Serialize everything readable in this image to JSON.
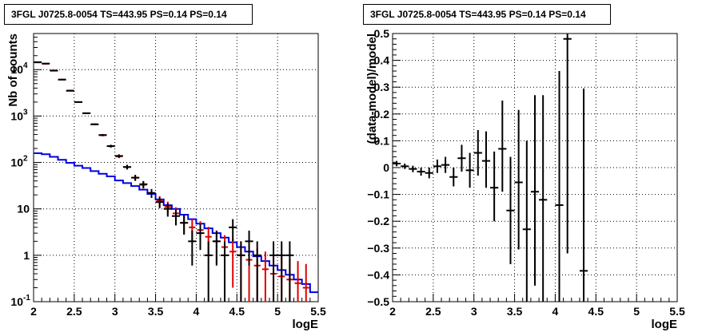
{
  "panels": [
    {
      "title": "3FGL J0725.8-0054 TS=443.95 PS=0.14 PS=0.14"
    },
    {
      "title": "3FGL J0725.8-0054 TS=443.95 PS=0.14 PS=0.14"
    }
  ],
  "colors": {
    "data": "#000000",
    "model_points": "#dd0000",
    "model_line": "#0000dd",
    "grid": "#000000"
  },
  "chart_data": [
    {
      "type": "line",
      "title": "3FGL J0725.8-0054 TS=443.95 PS=0.14 PS=0.14",
      "xlabel": "logE",
      "ylabel": "Nb of counts",
      "xlim": [
        2,
        5.5
      ],
      "ylim": [
        0.1,
        60000
      ],
      "yscale": "log",
      "grid": true,
      "x_ticks": [
        "2",
        "2.5",
        "3",
        "3.5",
        "4",
        "4.5",
        "5",
        "5.5"
      ],
      "y_ticks": [
        {
          "value": 0.1,
          "label": "10",
          "exp": "-1"
        },
        {
          "value": 1,
          "label": "1",
          "exp": ""
        },
        {
          "value": 10,
          "label": "10",
          "exp": ""
        },
        {
          "value": 100,
          "label": "10",
          "exp": "2"
        },
        {
          "value": 1000,
          "label": "10",
          "exp": "3"
        },
        {
          "value": 10000,
          "label": "10",
          "exp": "4"
        }
      ],
      "bin_width": 0.1,
      "series": [
        {
          "role": "data",
          "x": [
            2.05,
            2.15,
            2.25,
            2.35,
            2.45,
            2.55,
            2.65,
            2.75,
            2.85,
            2.95,
            3.05,
            3.15,
            3.25,
            3.35,
            3.45,
            3.55,
            3.65,
            3.75,
            3.85,
            3.95,
            4.05,
            4.15,
            4.25,
            4.35,
            4.45,
            4.55,
            4.65,
            4.75,
            4.85,
            4.95,
            5.05,
            5.15,
            5.25,
            5.35,
            5.45
          ],
          "y": [
            14500,
            13500,
            9500,
            6100,
            3500,
            2000,
            1150,
            660,
            390,
            225,
            138,
            80,
            47,
            34,
            22,
            14,
            10,
            7,
            5,
            2,
            3,
            1,
            2,
            1,
            4,
            1,
            2,
            1,
            0,
            1,
            1,
            1,
            0,
            0,
            0
          ],
          "err_low": [
            120,
            116,
            97,
            78,
            59,
            45,
            34,
            25,
            20,
            15,
            11.7,
            8.9,
            6.9,
            5.8,
            4.7,
            3.7,
            3.2,
            2.6,
            2.2,
            1.4,
            1.7,
            1,
            1.4,
            1,
            2,
            1,
            1.4,
            1,
            0,
            1,
            1,
            1,
            0,
            0,
            0
          ],
          "err_high": [
            120,
            116,
            97,
            78,
            59,
            45,
            34,
            25,
            20,
            15,
            11.7,
            8.9,
            6.9,
            5.8,
            4.7,
            3.7,
            3.2,
            2.6,
            2.2,
            1.4,
            1.7,
            1,
            1.4,
            1,
            2,
            1,
            1.4,
            1,
            0,
            1,
            1,
            1,
            0,
            0,
            0
          ]
        },
        {
          "role": "model points",
          "x": [
            2.05,
            2.15,
            2.25,
            2.35,
            2.45,
            2.55,
            2.65,
            2.75,
            2.85,
            2.95,
            3.05,
            3.15,
            3.25,
            3.35,
            3.45,
            3.55,
            3.65,
            3.75,
            3.85,
            3.95,
            4.05,
            4.15,
            4.25,
            4.35,
            4.45,
            4.55,
            4.65,
            4.75,
            4.85,
            4.95,
            5.05,
            5.15,
            5.25,
            5.35
          ],
          "y": [
            14300,
            13400,
            9600,
            6100,
            3550,
            2000,
            1150,
            670,
            385,
            225,
            135,
            79,
            47,
            33,
            22,
            15,
            11,
            8,
            5,
            4,
            3.5,
            2.5,
            2,
            1.5,
            1.2,
            1,
            0.8,
            0.6,
            0.5,
            0.4,
            0.35,
            0.3,
            0.25,
            0.2
          ],
          "err_low": [
            119,
            115,
            97,
            78,
            59,
            44,
            34,
            25,
            19,
            15,
            11,
            8.8,
            6.8,
            5.7,
            4.7,
            3.8,
            3.3,
            2.8,
            2.2,
            2,
            1.8,
            1.5,
            1.35,
            1.15,
            1,
            0.9,
            0.7,
            0.52,
            0.43,
            0.35,
            0.3,
            0.26,
            0.22,
            0.18
          ],
          "err_high": [
            119,
            115,
            97,
            78,
            59,
            44,
            34,
            25,
            19,
            15,
            11,
            8.8,
            6.8,
            5.7,
            4.7,
            3.8,
            3.3,
            2.8,
            2.2,
            2,
            1.9,
            1.6,
            1.4,
            1.2,
            1.1,
            1,
            0.9,
            0.8,
            0.7,
            0.6,
            0.6,
            0.55,
            0.5,
            0.45
          ]
        },
        {
          "role": "model histogram",
          "bin_edges": [
            2.0,
            2.1,
            2.2,
            2.3,
            2.4,
            2.5,
            2.6,
            2.7,
            2.8,
            2.9,
            3.0,
            3.1,
            3.2,
            3.3,
            3.4,
            3.5,
            3.6,
            3.7,
            3.8,
            3.9,
            4.0,
            4.1,
            4.2,
            4.3,
            4.4,
            4.5,
            4.6,
            4.7,
            4.8,
            4.9,
            5.0,
            5.1,
            5.2,
            5.3,
            5.4,
            5.5
          ],
          "values": [
            158,
            150,
            132,
            114,
            98,
            85,
            76,
            65,
            57,
            50,
            41,
            36,
            31,
            26,
            21,
            16,
            12,
            10,
            7.5,
            6,
            4.8,
            3.8,
            3,
            2.4,
            1.9,
            1.5,
            1.2,
            0.95,
            0.75,
            0.6,
            0.48,
            0.38,
            0.3,
            0.24,
            0.16
          ]
        }
      ]
    },
    {
      "type": "scatter",
      "title": "3FGL J0725.8-0054 TS=443.95 PS=0.14 PS=0.14",
      "xlabel": "logE",
      "ylabel": "(data-model)/model",
      "xlim": [
        2,
        5.5
      ],
      "ylim": [
        -0.5,
        0.5
      ],
      "grid": true,
      "x_ticks": [
        "2",
        "2.5",
        "3",
        "3.5",
        "4",
        "4.5",
        "5",
        "5.5"
      ],
      "y_ticks": [
        "−0.5",
        "−0.4",
        "−0.3",
        "−0.2",
        "−0.1",
        "0",
        "0.1",
        "0.2",
        "0.3",
        "0.4",
        "0.5"
      ],
      "bin_width": 0.1,
      "series": [
        {
          "role": "residuals",
          "x": [
            2.05,
            2.15,
            2.25,
            2.35,
            2.45,
            2.55,
            2.65,
            2.75,
            2.85,
            2.95,
            3.05,
            3.15,
            3.25,
            3.35,
            3.45,
            3.55,
            3.65,
            3.75,
            3.85,
            4.05,
            4.15,
            4.35
          ],
          "y": [
            0.015,
            0.005,
            -0.005,
            -0.015,
            -0.02,
            0.005,
            0.01,
            -0.035,
            0.035,
            -0.01,
            0.055,
            0.025,
            -0.075,
            0.07,
            -0.16,
            -0.055,
            -0.23,
            -0.09,
            -0.12,
            -0.14,
            0.48,
            -0.385
          ],
          "err_low": [
            0.01,
            0.01,
            0.012,
            0.015,
            0.02,
            0.025,
            0.03,
            0.035,
            0.05,
            0.065,
            0.085,
            0.1,
            0.125,
            0.16,
            0.2,
            0.25,
            0.3,
            0.35,
            0.42,
            0.5,
            0.8,
            0.5
          ],
          "err_high": [
            0.01,
            0.01,
            0.012,
            0.015,
            0.02,
            0.025,
            0.03,
            0.035,
            0.05,
            0.065,
            0.085,
            0.11,
            0.135,
            0.18,
            0.2,
            0.27,
            0.33,
            0.36,
            0.39,
            0.5,
            0.02,
            0.68
          ]
        }
      ]
    }
  ]
}
